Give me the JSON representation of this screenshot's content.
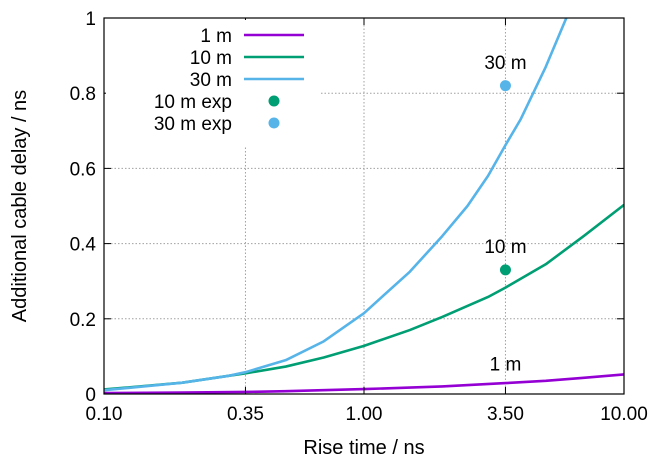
{
  "chart_data": {
    "type": "line",
    "xlabel": "Rise time / ns",
    "ylabel": "Additional cable delay / ns",
    "x_scale": "log",
    "xlim": [
      0.1,
      10.0
    ],
    "ylim": [
      0,
      1
    ],
    "x_ticks": [
      {
        "value": 0.1,
        "label": "0.10"
      },
      {
        "value": 0.35,
        "label": "0.35"
      },
      {
        "value": 1.0,
        "label": "1.00"
      },
      {
        "value": 3.5,
        "label": "3.50"
      },
      {
        "value": 10.0,
        "label": "10.00"
      }
    ],
    "y_ticks": [
      {
        "value": 0,
        "label": "0"
      },
      {
        "value": 0.2,
        "label": "0.2"
      },
      {
        "value": 0.4,
        "label": "0.4"
      },
      {
        "value": 0.6,
        "label": "0.6"
      },
      {
        "value": 0.8,
        "label": "0.8"
      },
      {
        "value": 1,
        "label": "1"
      }
    ],
    "grid": true,
    "legend_position": "top-left",
    "series": [
      {
        "name": "1 m",
        "kind": "line",
        "color": "#9400d3",
        "x": [
          0.1,
          0.2,
          0.35,
          0.5,
          1.0,
          2.0,
          3.5,
          5.0,
          7.0,
          10.0
        ],
        "y": [
          0.0025,
          0.004,
          0.0055,
          0.0075,
          0.013,
          0.02,
          0.029,
          0.035,
          0.043,
          0.052
        ]
      },
      {
        "name": "10 m",
        "kind": "line",
        "color": "#009e73",
        "x": [
          0.1,
          0.2,
          0.35,
          0.5,
          0.7,
          1.0,
          1.5,
          2.0,
          3.0,
          3.5,
          5.0,
          7.0,
          10.0
        ],
        "y": [
          0.012,
          0.03,
          0.055,
          0.073,
          0.097,
          0.128,
          0.17,
          0.205,
          0.258,
          0.283,
          0.345,
          0.42,
          0.503
        ]
      },
      {
        "name": "30 m",
        "kind": "line",
        "color": "#56b4e9",
        "x": [
          0.1,
          0.2,
          0.3,
          0.35,
          0.5,
          0.7,
          1.0,
          1.5,
          2.0,
          2.5,
          3.0,
          3.5,
          4.0,
          5.0,
          6.0
        ],
        "y": [
          0.01,
          0.03,
          0.048,
          0.058,
          0.09,
          0.14,
          0.215,
          0.325,
          0.42,
          0.5,
          0.58,
          0.662,
          0.73,
          0.87,
          1.0
        ]
      },
      {
        "name": "10 m exp",
        "kind": "points",
        "color": "#009e73",
        "x": [
          3.5
        ],
        "y": [
          0.33
        ]
      },
      {
        "name": "30 m exp",
        "kind": "points",
        "color": "#56b4e9",
        "x": [
          3.5
        ],
        "y": [
          0.82
        ]
      }
    ],
    "annotations": [
      {
        "text": "30 m",
        "x": 3.5,
        "y": 0.865
      },
      {
        "text": "10 m",
        "x": 3.5,
        "y": 0.375
      },
      {
        "text": "1 m",
        "x": 3.5,
        "y": 0.063
      }
    ]
  }
}
